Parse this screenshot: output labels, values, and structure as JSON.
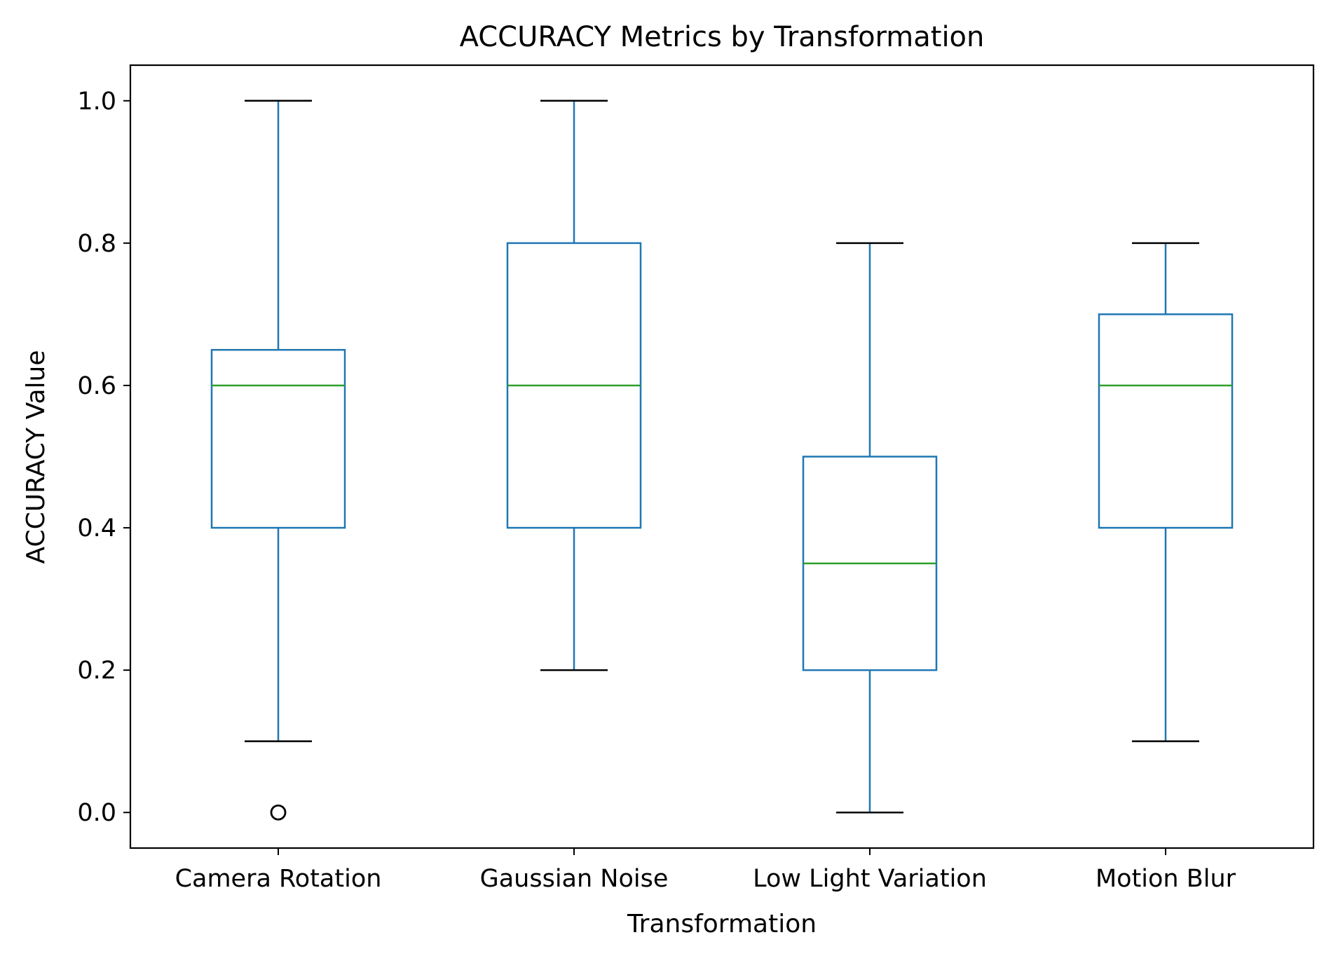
{
  "chart_data": {
    "type": "box",
    "title": "ACCURACY Metrics by Transformation",
    "xlabel": "Transformation",
    "ylabel": "ACCURACY Value",
    "ylim": [
      -0.05,
      1.05
    ],
    "yticks": [
      "0.0",
      "0.2",
      "0.4",
      "0.6",
      "0.8",
      "1.0"
    ],
    "ytick_values": [
      0.0,
      0.2,
      0.4,
      0.6,
      0.8,
      1.0
    ],
    "grid": false,
    "categories": [
      "Camera Rotation",
      "Gaussian Noise",
      "Low Light Variation",
      "Motion Blur"
    ],
    "boxes": [
      {
        "category": "Camera Rotation",
        "whisker_low": 0.1,
        "q1": 0.4,
        "median": 0.6,
        "q3": 0.65,
        "whisker_high": 1.0,
        "outliers": [
          0.0
        ]
      },
      {
        "category": "Gaussian Noise",
        "whisker_low": 0.2,
        "q1": 0.4,
        "median": 0.6,
        "q3": 0.8,
        "whisker_high": 1.0,
        "outliers": []
      },
      {
        "category": "Low Light Variation",
        "whisker_low": 0.0,
        "q1": 0.2,
        "median": 0.35,
        "q3": 0.5,
        "whisker_high": 0.8,
        "outliers": []
      },
      {
        "category": "Motion Blur",
        "whisker_low": 0.1,
        "q1": 0.4,
        "median": 0.6,
        "q3": 0.7,
        "whisker_high": 0.8,
        "outliers": []
      }
    ],
    "colors": {
      "box": "#1f77b4",
      "median": "#2ca02c",
      "caps": "#000000",
      "outlier": "#000000"
    }
  }
}
